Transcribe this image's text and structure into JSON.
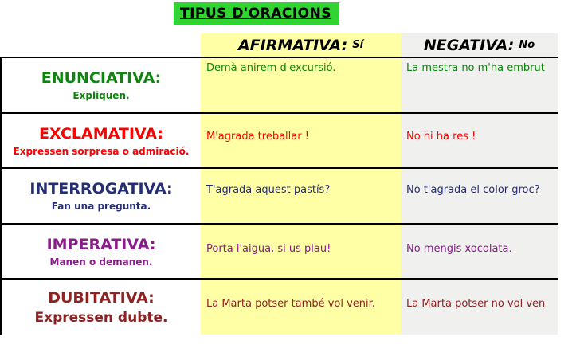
{
  "title": "TIPUS D'ORACIONS",
  "header": {
    "affirmative": {
      "label": "AFIRMATIVA:",
      "tag": "Sí"
    },
    "negative": {
      "label": "NEGATIVA:",
      "tag": "No"
    }
  },
  "colors": {
    "title_bg": "#32d434",
    "affirmative_col_bg": "#ffffa6",
    "negative_col_bg": "#f0f0ee",
    "row_enunciativa": "#0e850e",
    "row_exclamativa": "#fe0000",
    "row_interrogativa": "#252e75",
    "row_imperativa": "#8a1c8a",
    "row_dubitativa": "#8d2323"
  },
  "rows": [
    {
      "type": "ENUNCIATIVA:",
      "desc": "Expliquen.",
      "color": "#0e850e",
      "affirmative": "Demà anirem d'excursió.",
      "negative": "La mestra no m'ha embrut"
    },
    {
      "type": "EXCLAMATIVA:",
      "desc": "Expressen sorpresa o admiració.",
      "color": "#fe0000",
      "affirmative": "M'agrada treballar !",
      "negative": "No hi ha res !"
    },
    {
      "type": "INTERROGATIVA:",
      "desc": "Fan una pregunta.",
      "color": "#252e75",
      "affirmative": "T'agrada aquest pastís?",
      "negative": "No t'agrada el color groc?"
    },
    {
      "type": "IMPERATIVA:",
      "desc": "Manen o demanen.",
      "color": "#8a1c8a",
      "affirmative": "Porta l'aigua, si us plau!",
      "negative": "No mengis xocolata."
    },
    {
      "type": "DUBITATIVA:",
      "desc": "Expressen dubte.",
      "color": "#8d2323",
      "affirmative": "La Marta potser també vol venir.",
      "negative": "La Marta potser no vol ven"
    }
  ]
}
